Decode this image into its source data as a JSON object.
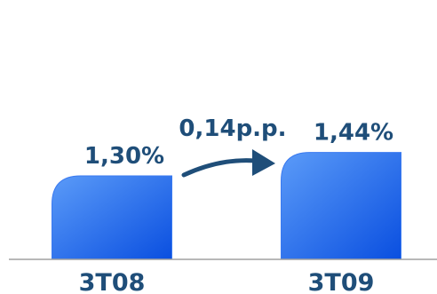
{
  "chart_data": {
    "type": "bar",
    "categories": [
      "3T08",
      "3T09"
    ],
    "values": [
      1.3,
      1.44
    ],
    "value_labels": [
      "1,30%",
      "1,44%"
    ],
    "annotation": "0,14p.p.",
    "title": "",
    "xlabel": "",
    "ylabel": "",
    "grid": false,
    "legend": "none"
  },
  "colors": {
    "bar_top": "#5b9bf8",
    "bar_bottom": "#0a4fe0",
    "text": "#1f4e79",
    "arrow": "#1f4e79",
    "axis": "#a0a0a0"
  }
}
